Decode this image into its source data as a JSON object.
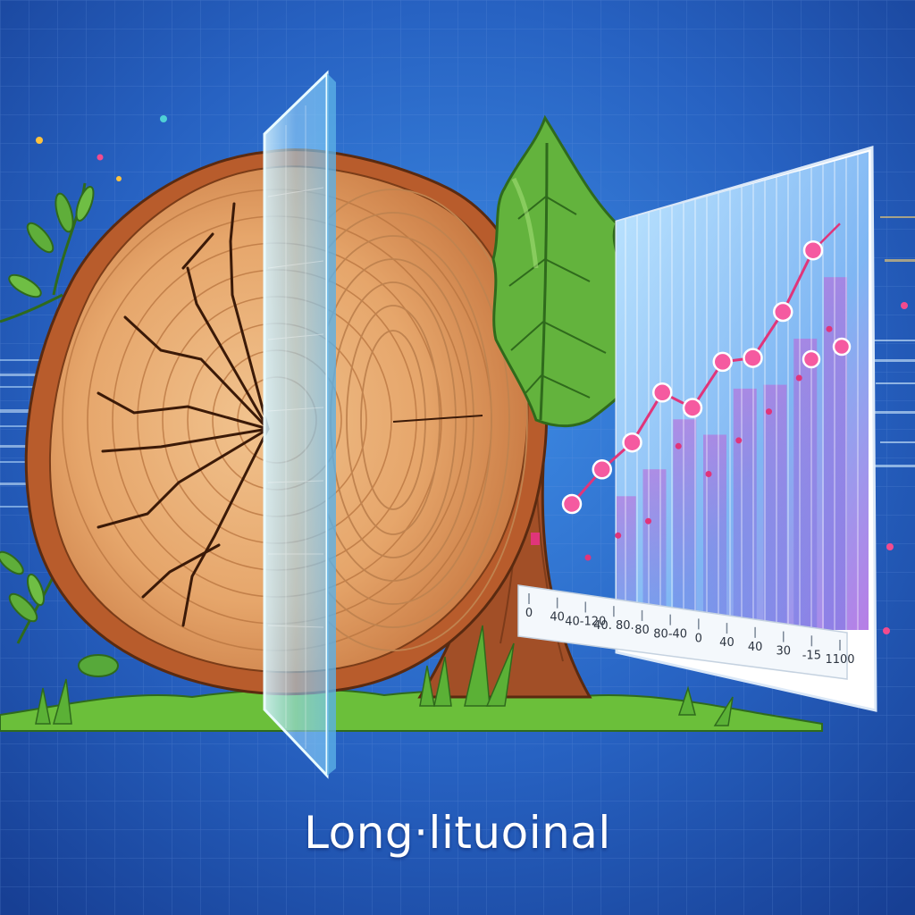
{
  "caption": "Long·lituoinal",
  "chart_data": {
    "type": "line",
    "title": "",
    "xlabel": "",
    "ylabel": "",
    "tick_labels": [
      "0",
      "40",
      "40-120",
      "40. 80.",
      "80",
      "80-40",
      "0",
      "40",
      "40",
      "30",
      "-15",
      "1100"
    ],
    "series": [
      {
        "values": [
          2.0,
          2.9,
          3.6,
          4.9,
          4.5,
          5.7,
          5.8,
          7.0,
          8.6
        ]
      }
    ],
    "ylim": [
      0,
      10
    ],
    "grid": true
  },
  "colors": {
    "background": "#1f4fa8",
    "grid": "#6d97df",
    "wood_light": "#e8ad72",
    "wood_dark": "#c7743f",
    "bark": "#a24f27",
    "leaf": "#63b33d",
    "glass": "#bfeaff",
    "chart_line": "#e0357a",
    "chart_marker": "#f55aa0"
  },
  "icons": {
    "tree_slice": "tree-cross-section-icon",
    "sapling": "sapling-icon",
    "glass_panel": "glass-panel-icon"
  }
}
